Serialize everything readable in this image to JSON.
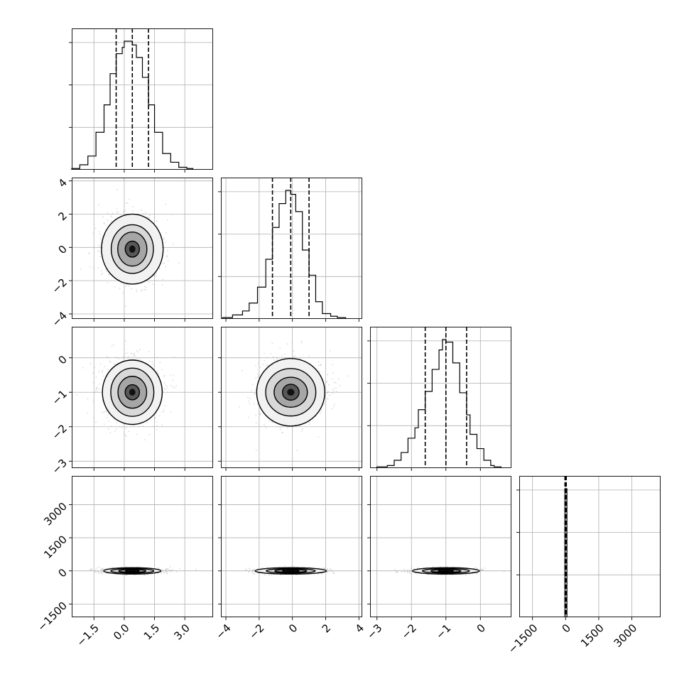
{
  "chart_data": {
    "type": "corner",
    "title": "",
    "parameters": [
      {
        "index": 0,
        "range": [
          -2.6,
          4.4
        ],
        "ticks": [
          "−1.5",
          "0.0",
          "1.5",
          "3.0"
        ],
        "tick_values": [
          -1.5,
          0,
          1.5,
          3
        ]
      },
      {
        "index": 1,
        "range": [
          -4.3,
          4.2
        ],
        "ticks": [
          "−4",
          "−2",
          "0",
          "2",
          "4"
        ],
        "tick_values": [
          -4,
          -2,
          0,
          2,
          4
        ]
      },
      {
        "index": 2,
        "range": [
          -3.2,
          0.9
        ],
        "ticks": [
          "−3",
          "−2",
          "−1",
          "0"
        ],
        "tick_values": [
          -3,
          -2,
          -1,
          0
        ]
      },
      {
        "index": 3,
        "range": [
          -2100,
          4300
        ],
        "ticks": [
          "−1500",
          "0",
          "1500",
          "3000"
        ],
        "tick_values": [
          -1500,
          0,
          1500,
          3000
        ]
      }
    ],
    "quantiles": [
      [
        -0.4,
        0.4,
        1.2
      ],
      [
        -1.2,
        -0.1,
        1.0
      ],
      [
        -1.6,
        -1.0,
        -0.4
      ],
      [
        -30,
        5,
        30
      ]
    ],
    "histograms": [
      {
        "param": 0,
        "bin_edges": [
          -2.6,
          -2.2,
          -1.8,
          -1.4,
          -1.0,
          -0.7,
          -0.4,
          -0.1,
          0.0,
          0.2,
          0.4,
          0.6,
          0.9,
          1.2,
          1.5,
          1.9,
          2.3,
          2.7,
          3.1,
          3.4
        ],
        "counts": [
          1,
          4,
          11,
          30,
          52,
          77,
          93,
          98,
          103,
          103,
          100,
          90,
          74,
          52,
          30,
          13,
          6,
          2,
          1
        ]
      },
      {
        "param": 1,
        "bin_edges": [
          -4.2,
          -3.6,
          -3.0,
          -2.6,
          -2.1,
          -1.6,
          -1.2,
          -0.8,
          -0.4,
          -0.1,
          0.2,
          0.6,
          1.0,
          1.4,
          1.8,
          2.3,
          2.7,
          3.2
        ],
        "counts": [
          1,
          3,
          6,
          12,
          24,
          45,
          69,
          87,
          97,
          94,
          81,
          52,
          33,
          13,
          4,
          2,
          1
        ]
      },
      {
        "param": 2,
        "bin_edges": [
          -3.0,
          -2.7,
          -2.5,
          -2.3,
          -2.1,
          -1.9,
          -1.8,
          -1.6,
          -1.4,
          -1.2,
          -1.1,
          -1.0,
          -0.8,
          -0.6,
          -0.4,
          -0.3,
          -0.1,
          0.1,
          0.3,
          0.4,
          0.6
        ],
        "counts": [
          1,
          2,
          6,
          12,
          23,
          31,
          45,
          59,
          76,
          91,
          99,
          97,
          81,
          58,
          41,
          26,
          15,
          6,
          2,
          1
        ]
      },
      {
        "param": 3,
        "bin_edges": [
          -30,
          60
        ],
        "counts": [
          100
        ]
      }
    ],
    "scatter_panels": [
      {
        "x_param": 0,
        "y_param": 1,
        "center": [
          0.4,
          -0.1
        ]
      },
      {
        "x_param": 0,
        "y_param": 2,
        "center": [
          0.4,
          -1.0
        ]
      },
      {
        "x_param": 1,
        "y_param": 2,
        "center": [
          -0.1,
          -1.0
        ]
      },
      {
        "x_param": 0,
        "y_param": 3,
        "center": [
          0.4,
          0
        ]
      },
      {
        "x_param": 1,
        "y_param": 3,
        "center": [
          -0.1,
          0
        ]
      },
      {
        "x_param": 2,
        "y_param": 3,
        "center": [
          -1.0,
          0
        ]
      }
    ],
    "grid": true,
    "legend": "none"
  }
}
